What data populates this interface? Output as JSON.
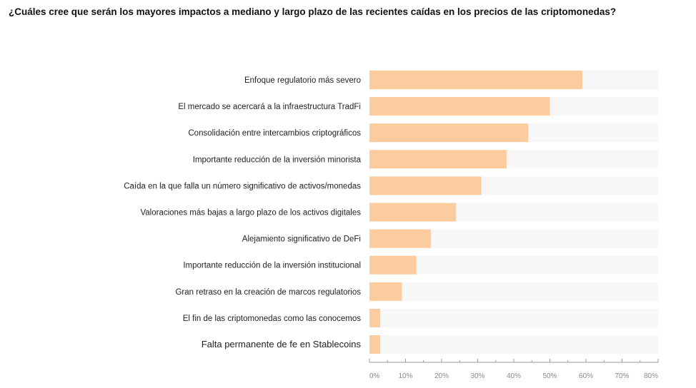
{
  "chart_data": {
    "type": "bar",
    "orientation": "horizontal",
    "title": "¿Cuáles cree que serán los mayores impactos a mediano y largo plazo de las recientes caídas en los precios de las criptomonedas?",
    "categories": [
      "Enfoque regulatorio más severo",
      "El mercado se acercará a la infraestructura TradFi",
      "Consolidación entre intercambios criptográficos",
      "Importante reducción de la inversión minorista",
      "Caída en la que falla un número significativo de activos/monedas",
      "Valoraciones más bajas a largo plazo de los activos digitales",
      "Alejamiento significativo de DeFi",
      "Importante reducción de la inversión institucional",
      "Gran retraso en la creación de marcos regulatorios",
      "El fin de las criptomonedas como las conocemos",
      "Falta permanente de fe en Stablecoins"
    ],
    "values": [
      59,
      50,
      44,
      38,
      31,
      24,
      17,
      13,
      9,
      3,
      3
    ],
    "xlim": [
      0,
      80
    ],
    "tick_labels": [
      "0%",
      "10%",
      "20%",
      "30%",
      "40%",
      "50%",
      "60%",
      "70%",
      "80%"
    ],
    "xlabel": "",
    "ylabel": "",
    "bar_color": "#fdcc9e",
    "track_color": "#f7f7f7"
  }
}
